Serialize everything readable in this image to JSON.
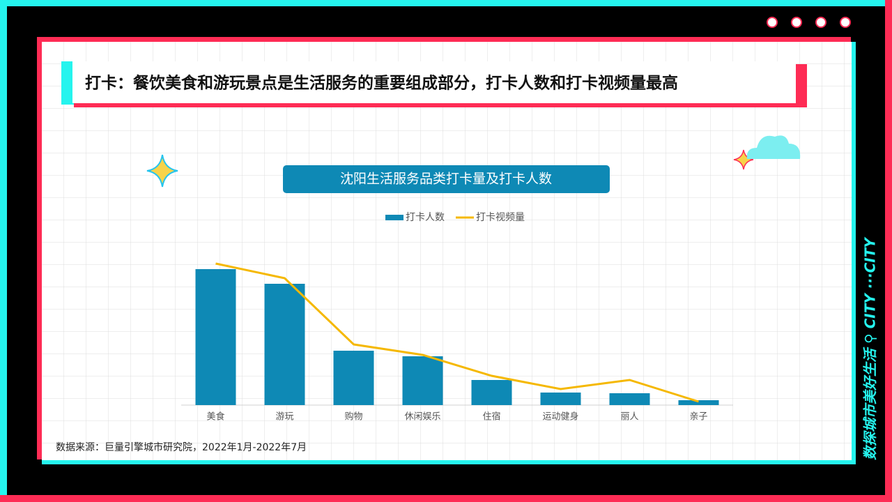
{
  "header": {
    "title": "打卡：餐饮美食和游玩景点是生活服务的重要组成部分，打卡人数和打卡视频量最高"
  },
  "chart_data": {
    "type": "bar",
    "title": "沈阳生活服务品类打卡量及打卡人数",
    "categories": [
      "美食",
      "游玩",
      "购物",
      "休闲娱乐",
      "住宿",
      "运动健身",
      "丽人",
      "亲子"
    ],
    "series": [
      {
        "name": "打卡人数",
        "type": "bar",
        "color": "#0e89b5",
        "values": [
          195,
          174,
          78,
          70,
          36,
          18,
          17,
          7
        ]
      },
      {
        "name": "打卡视频量",
        "type": "line",
        "color": "#f5b800",
        "values": [
          203,
          182,
          87,
          72,
          42,
          23,
          36,
          5
        ]
      }
    ],
    "ylim": [
      0,
      220
    ],
    "legend": "top"
  },
  "source": "数据来源：巨量引擎城市研究院，2022年1月-2022年7月",
  "side_text": "数探城市美好生活 ⚲ CITY ···CITY"
}
